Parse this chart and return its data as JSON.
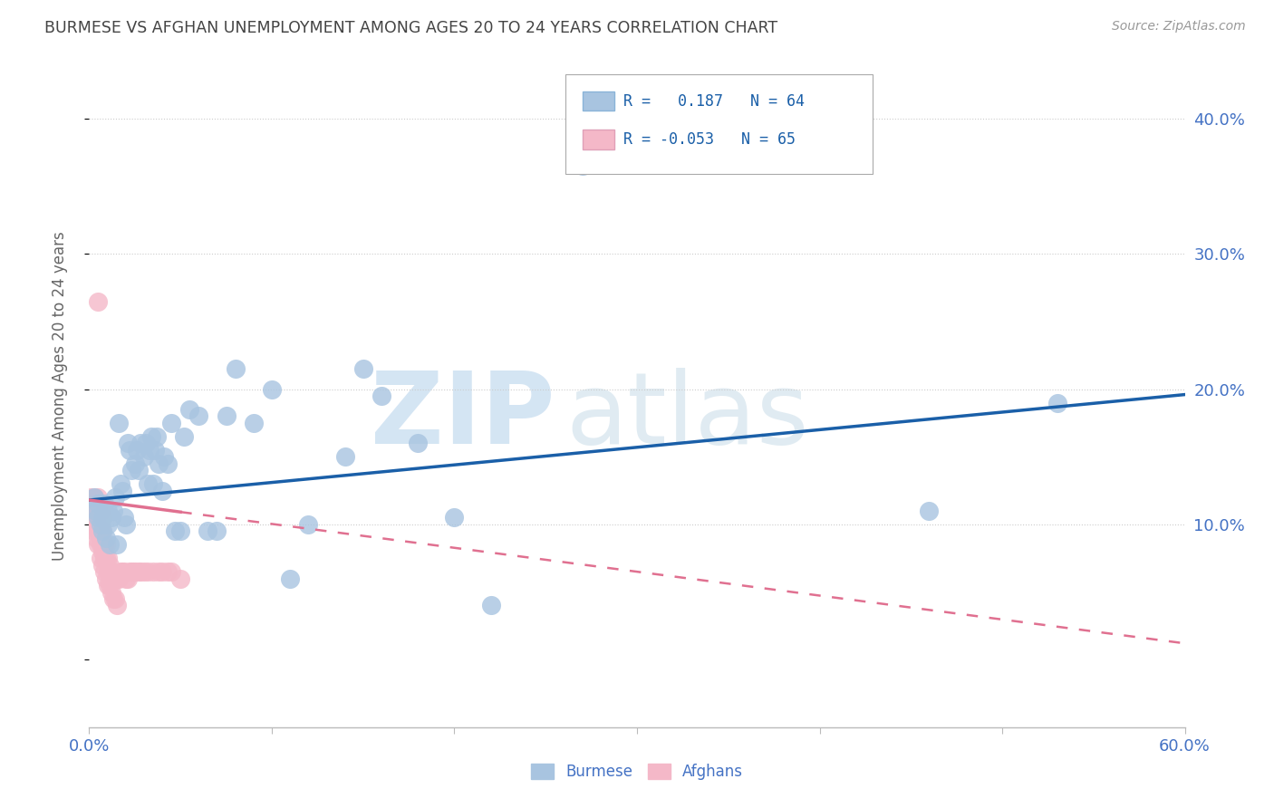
{
  "title": "BURMESE VS AFGHAN UNEMPLOYMENT AMONG AGES 20 TO 24 YEARS CORRELATION CHART",
  "source": "Source: ZipAtlas.com",
  "ylabel": "Unemployment Among Ages 20 to 24 years",
  "watermark": "ZIPatlas",
  "xlim": [
    0.0,
    0.6
  ],
  "ylim": [
    -0.05,
    0.44
  ],
  "burmese_color": "#a8c4e0",
  "afghan_color": "#f4b8c8",
  "burmese_line_color": "#1a5fa8",
  "afghan_line_color": "#e07090",
  "axis_label_color": "#4472c4",
  "legend_text_color": "#1a5fa8",
  "R_burmese": 0.187,
  "N_burmese": 64,
  "R_afghan": -0.053,
  "N_afghan": 65,
  "burmese_line_x0": 0.0,
  "burmese_line_y0": 0.118,
  "burmese_line_x1": 0.6,
  "burmese_line_y1": 0.196,
  "afghan_line_x0": 0.0,
  "afghan_line_y0": 0.118,
  "afghan_line_x1": 0.6,
  "afghan_line_y1": 0.012,
  "burmese_x": [
    0.003,
    0.004,
    0.005,
    0.005,
    0.006,
    0.007,
    0.007,
    0.008,
    0.009,
    0.01,
    0.01,
    0.011,
    0.012,
    0.013,
    0.014,
    0.015,
    0.016,
    0.017,
    0.018,
    0.019,
    0.02,
    0.021,
    0.022,
    0.023,
    0.025,
    0.026,
    0.027,
    0.028,
    0.03,
    0.031,
    0.032,
    0.033,
    0.034,
    0.035,
    0.036,
    0.037,
    0.038,
    0.04,
    0.041,
    0.043,
    0.045,
    0.047,
    0.05,
    0.052,
    0.055,
    0.06,
    0.065,
    0.07,
    0.075,
    0.08,
    0.09,
    0.1,
    0.11,
    0.12,
    0.14,
    0.15,
    0.16,
    0.18,
    0.2,
    0.22,
    0.27,
    0.27,
    0.46,
    0.53
  ],
  "burmese_y": [
    0.12,
    0.11,
    0.105,
    0.115,
    0.1,
    0.095,
    0.105,
    0.115,
    0.09,
    0.1,
    0.11,
    0.085,
    0.105,
    0.11,
    0.12,
    0.085,
    0.175,
    0.13,
    0.125,
    0.105,
    0.1,
    0.16,
    0.155,
    0.14,
    0.145,
    0.155,
    0.14,
    0.16,
    0.15,
    0.16,
    0.13,
    0.155,
    0.165,
    0.13,
    0.155,
    0.165,
    0.145,
    0.125,
    0.15,
    0.145,
    0.175,
    0.095,
    0.095,
    0.165,
    0.185,
    0.18,
    0.095,
    0.095,
    0.18,
    0.215,
    0.175,
    0.2,
    0.06,
    0.1,
    0.15,
    0.215,
    0.195,
    0.16,
    0.105,
    0.04,
    0.395,
    0.365,
    0.11,
    0.19
  ],
  "afghan_x": [
    0.001,
    0.001,
    0.001,
    0.002,
    0.002,
    0.002,
    0.003,
    0.003,
    0.003,
    0.003,
    0.004,
    0.004,
    0.004,
    0.005,
    0.005,
    0.005,
    0.005,
    0.006,
    0.006,
    0.006,
    0.006,
    0.007,
    0.007,
    0.007,
    0.007,
    0.008,
    0.008,
    0.008,
    0.009,
    0.009,
    0.009,
    0.01,
    0.01,
    0.01,
    0.011,
    0.011,
    0.012,
    0.012,
    0.013,
    0.013,
    0.014,
    0.014,
    0.015,
    0.015,
    0.016,
    0.017,
    0.018,
    0.019,
    0.02,
    0.021,
    0.022,
    0.023,
    0.024,
    0.025,
    0.027,
    0.028,
    0.03,
    0.032,
    0.035,
    0.038,
    0.04,
    0.043,
    0.045,
    0.05,
    0.005
  ],
  "afghan_y": [
    0.12,
    0.115,
    0.11,
    0.105,
    0.115,
    0.1,
    0.095,
    0.105,
    0.11,
    0.12,
    0.09,
    0.105,
    0.11,
    0.085,
    0.095,
    0.11,
    0.12,
    0.075,
    0.085,
    0.095,
    0.11,
    0.07,
    0.08,
    0.095,
    0.105,
    0.065,
    0.075,
    0.085,
    0.06,
    0.075,
    0.085,
    0.055,
    0.065,
    0.075,
    0.055,
    0.07,
    0.05,
    0.065,
    0.045,
    0.06,
    0.045,
    0.06,
    0.04,
    0.06,
    0.06,
    0.065,
    0.065,
    0.065,
    0.06,
    0.06,
    0.065,
    0.065,
    0.065,
    0.065,
    0.065,
    0.065,
    0.065,
    0.065,
    0.065,
    0.065,
    0.065,
    0.065,
    0.065,
    0.06,
    0.265
  ]
}
